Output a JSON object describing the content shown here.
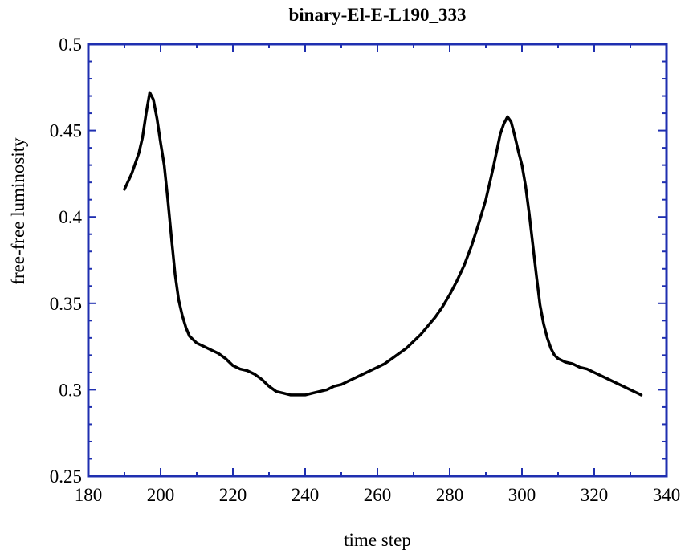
{
  "chart_data": {
    "type": "line",
    "title": "binary-El-E-L190_333",
    "xlabel": "time step",
    "ylabel": "free-free luminosity",
    "xlim": [
      180,
      340
    ],
    "ylim": [
      0.25,
      0.5
    ],
    "x_ticks": [
      180,
      200,
      220,
      240,
      260,
      280,
      300,
      320,
      340
    ],
    "y_ticks": [
      0.25,
      0.3,
      0.35,
      0.4,
      0.45,
      0.5
    ],
    "x_tick_labels": [
      "180",
      "200",
      "220",
      "240",
      "260",
      "280",
      "300",
      "320",
      "340"
    ],
    "y_tick_labels": [
      "0.25",
      "0.3",
      "0.35",
      "0.4",
      "0.45",
      "0.5"
    ],
    "grid": false,
    "frame_color": "#1f2fb0",
    "line_color": "#000000",
    "series": [
      {
        "x": [
          190,
          192,
          194,
          195,
          196,
          197,
          198,
          199,
          200,
          201,
          202,
          203,
          204,
          205,
          206,
          207,
          208,
          209,
          210,
          211,
          212,
          214,
          216,
          218,
          220,
          222,
          224,
          226,
          228,
          230,
          232,
          234,
          236,
          238,
          240,
          242,
          244,
          246,
          248,
          250,
          252,
          254,
          256,
          258,
          260,
          262,
          264,
          266,
          268,
          270,
          272,
          274,
          276,
          278,
          280,
          282,
          284,
          286,
          288,
          290,
          292,
          293,
          294,
          295,
          296,
          297,
          298,
          299,
          300,
          301,
          302,
          303,
          304,
          305,
          306,
          307,
          308,
          309,
          310,
          311,
          312,
          314,
          316,
          318,
          320,
          322,
          324,
          326,
          328,
          330,
          332,
          333
        ],
        "y": [
          0.416,
          0.425,
          0.437,
          0.446,
          0.46,
          0.472,
          0.468,
          0.457,
          0.443,
          0.43,
          0.41,
          0.388,
          0.367,
          0.352,
          0.343,
          0.336,
          0.331,
          0.329,
          0.327,
          0.326,
          0.325,
          0.323,
          0.321,
          0.318,
          0.314,
          0.312,
          0.311,
          0.309,
          0.306,
          0.302,
          0.299,
          0.298,
          0.297,
          0.297,
          0.297,
          0.298,
          0.299,
          0.3,
          0.302,
          0.303,
          0.305,
          0.307,
          0.309,
          0.311,
          0.313,
          0.315,
          0.318,
          0.321,
          0.324,
          0.328,
          0.332,
          0.337,
          0.342,
          0.348,
          0.355,
          0.363,
          0.372,
          0.383,
          0.396,
          0.41,
          0.428,
          0.438,
          0.448,
          0.454,
          0.458,
          0.455,
          0.447,
          0.438,
          0.43,
          0.418,
          0.402,
          0.384,
          0.366,
          0.349,
          0.338,
          0.33,
          0.324,
          0.32,
          0.318,
          0.317,
          0.316,
          0.315,
          0.313,
          0.312,
          0.31,
          0.308,
          0.306,
          0.304,
          0.302,
          0.3,
          0.298,
          0.297
        ]
      }
    ]
  }
}
